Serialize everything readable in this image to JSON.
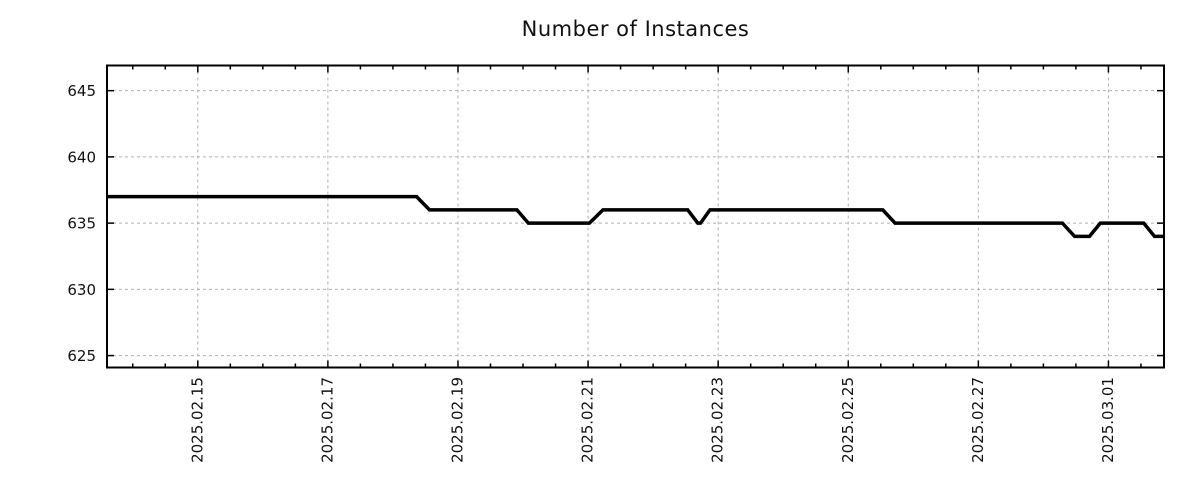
{
  "chart_data": {
    "type": "line",
    "title": "Number of Instances",
    "legend": {
      "visible": false
    },
    "background": "#ffffff",
    "grid": {
      "visible": true,
      "style": "dashed",
      "color": "#b0b0b0"
    },
    "line": {
      "color": "#000000",
      "width": 3.5
    },
    "x_axis": {
      "label": "",
      "range": [
        "2025-02-13T14:30",
        "2025-03-01T20:30"
      ],
      "minor_tick_hours": 12,
      "major_ticks": [
        {
          "t": "2025-02-15T00:00",
          "label": "2025.02.15"
        },
        {
          "t": "2025-02-17T00:00",
          "label": "2025.02.17"
        },
        {
          "t": "2025-02-19T00:00",
          "label": "2025.02.19"
        },
        {
          "t": "2025-02-21T00:00",
          "label": "2025.02.21"
        },
        {
          "t": "2025-02-23T00:00",
          "label": "2025.02.23"
        },
        {
          "t": "2025-02-25T00:00",
          "label": "2025.02.25"
        },
        {
          "t": "2025-02-27T00:00",
          "label": "2025.02.27"
        },
        {
          "t": "2025-03-01T00:00",
          "label": "2025.03.01"
        }
      ]
    },
    "y_axis": {
      "label": "",
      "range": [
        624.1,
        646.9
      ],
      "ticks": [
        625,
        630,
        635,
        640,
        645
      ]
    },
    "series": [
      {
        "name": "instances",
        "color": "#000000",
        "points": [
          {
            "t": "2025-02-13T14:30",
            "v": 637
          },
          {
            "t": "2025-02-18T08:45",
            "v": 637
          },
          {
            "t": "2025-02-18T13:30",
            "v": 636
          },
          {
            "t": "2025-02-19T21:45",
            "v": 636
          },
          {
            "t": "2025-02-20T02:00",
            "v": 635
          },
          {
            "t": "2025-02-21T00:30",
            "v": 635
          },
          {
            "t": "2025-02-21T05:30",
            "v": 636
          },
          {
            "t": "2025-02-22T12:45",
            "v": 636
          },
          {
            "t": "2025-02-22T16:30",
            "v": 635
          },
          {
            "t": "2025-02-22T17:30",
            "v": 635
          },
          {
            "t": "2025-02-22T21:00",
            "v": 636
          },
          {
            "t": "2025-02-25T12:45",
            "v": 636
          },
          {
            "t": "2025-02-25T17:15",
            "v": 635
          },
          {
            "t": "2025-02-28T07:00",
            "v": 635
          },
          {
            "t": "2025-02-28T11:30",
            "v": 634
          },
          {
            "t": "2025-02-28T17:00",
            "v": 634
          },
          {
            "t": "2025-02-28T21:00",
            "v": 635
          },
          {
            "t": "2025-03-01T13:00",
            "v": 635
          },
          {
            "t": "2025-03-01T17:00",
            "v": 634
          },
          {
            "t": "2025-03-01T20:30",
            "v": 634
          }
        ]
      }
    ]
  }
}
